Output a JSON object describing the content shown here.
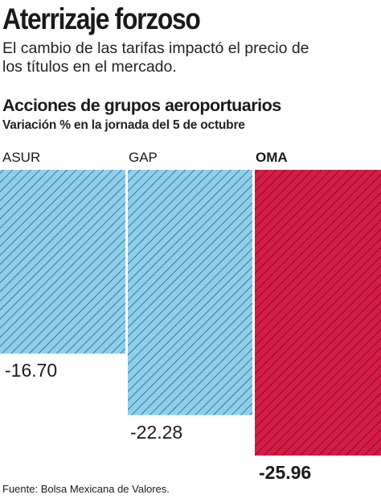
{
  "headline": "Aterrizaje forzoso",
  "dek": "El cambio de las tarifas impactó el precio de los títulos en el mercado.",
  "source": "Fuente: Bolsa Mexicana de Valores.",
  "colors": {
    "bar_fill": "#8ecfec",
    "highlight_fill": "#d51c45",
    "hatch_line": "#22556e",
    "highlight_hatch_line": "#5a0b1e"
  },
  "chart_data": {
    "type": "bar",
    "orientation": "vertical-downward",
    "title": "Acciones de grupos aeroportuarios",
    "subtitle": "Variación % en la jornada del 5 de octubre",
    "categories": [
      "ASUR",
      "GAP",
      "OMA"
    ],
    "values": [
      -16.7,
      -22.28,
      -25.96
    ],
    "value_labels": [
      "-16.70",
      "-22.28",
      "-25.96"
    ],
    "highlight": "OMA",
    "ylim": [
      -25.96,
      0
    ],
    "xlabel": "",
    "ylabel": "",
    "grid": false,
    "legend": "none"
  }
}
